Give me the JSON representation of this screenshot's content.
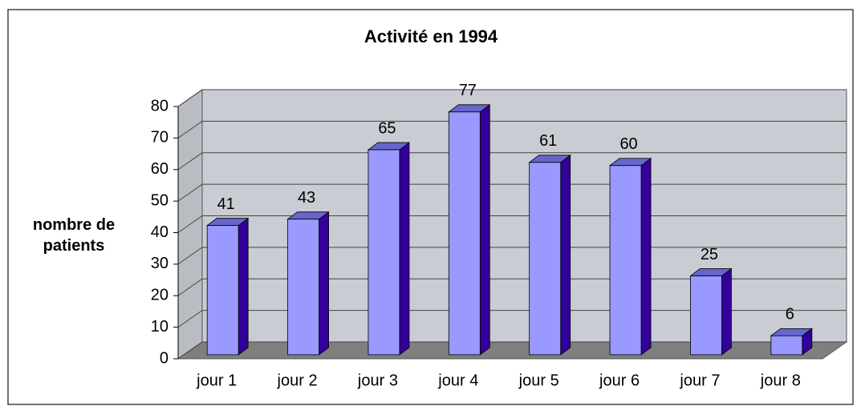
{
  "chart_data": {
    "type": "bar3d",
    "title": "Activité en 1994",
    "y_label": "nombre de patients",
    "categories": [
      "jour 1",
      "jour 2",
      "jour 3",
      "jour 4",
      "jour 5",
      "jour 6",
      "jour 7",
      "jour 8"
    ],
    "values": [
      41,
      43,
      65,
      77,
      61,
      60,
      25,
      6
    ],
    "color": "#9999ff",
    "ylim": [
      0,
      80
    ],
    "yticks": [
      0,
      10,
      20,
      30,
      40,
      50,
      60,
      70,
      80
    ],
    "grid": true,
    "data_labels": true
  }
}
